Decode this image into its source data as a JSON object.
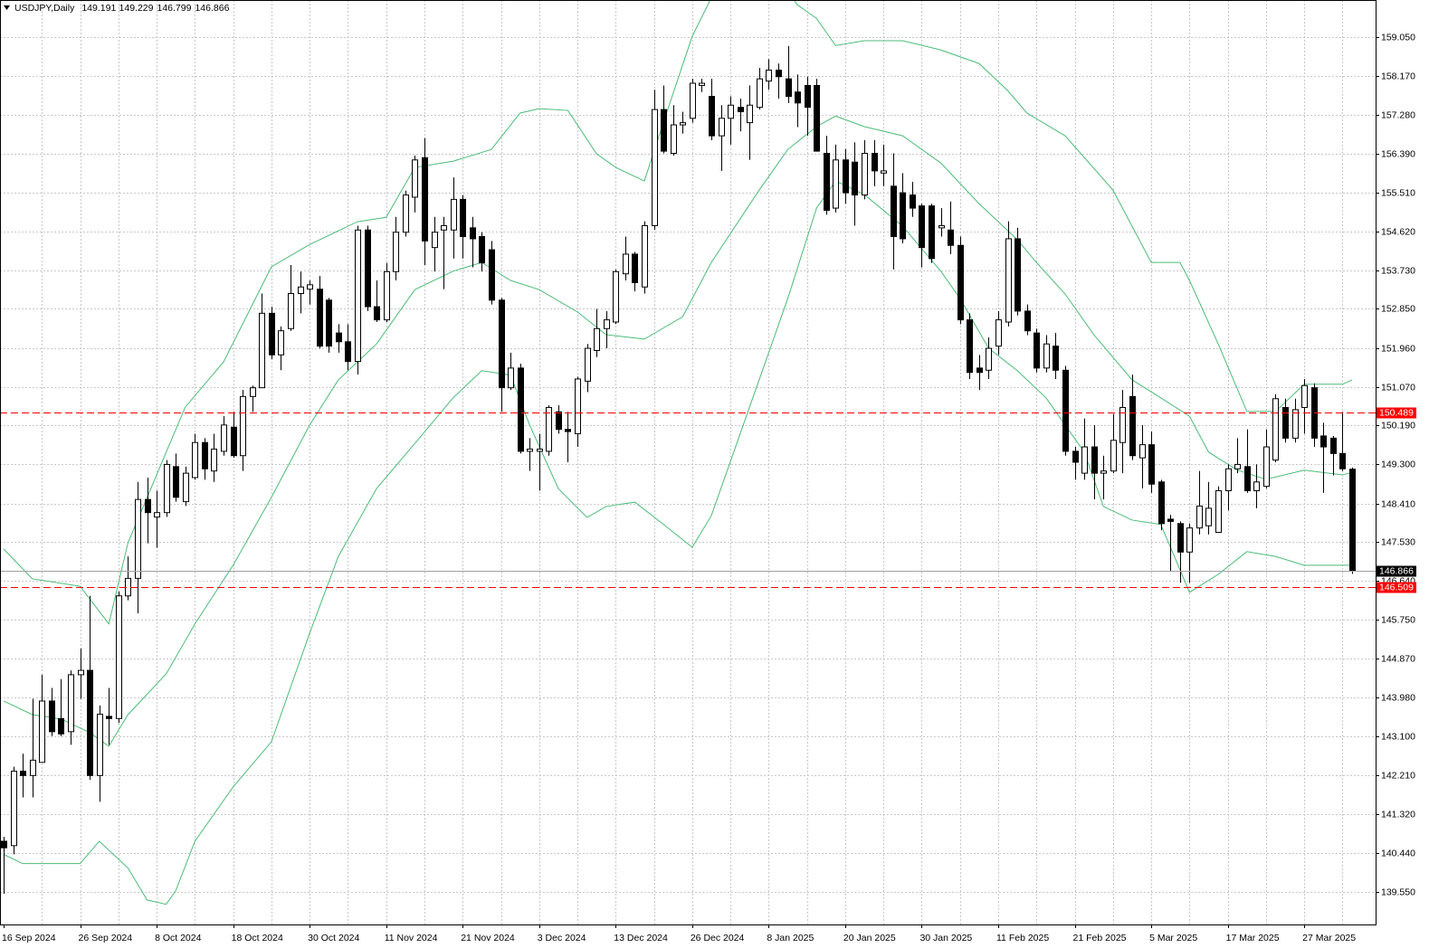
{
  "chart_data": {
    "type": "candlestick",
    "title": "USDJPY,Daily",
    "categories": [
      "16 Sep 2024",
      null,
      null,
      null,
      null,
      null,
      null,
      null,
      "26 Sep 2024",
      null,
      null,
      null,
      null,
      null,
      null,
      null,
      "8 Oct 2024",
      null,
      null,
      null,
      null,
      null,
      null,
      null,
      "18 Oct 2024",
      null,
      null,
      null,
      null,
      null,
      null,
      null,
      "30 Oct 2024",
      null,
      null,
      null,
      null,
      null,
      null,
      null,
      "11 Nov 2024",
      null,
      null,
      null,
      null,
      null,
      null,
      null,
      "21 Nov 2024",
      null,
      null,
      null,
      null,
      null,
      null,
      null,
      "3 Dec 2024",
      null,
      null,
      null,
      null,
      null,
      null,
      null,
      "13 Dec 2024",
      null,
      null,
      null,
      null,
      null,
      null,
      null,
      "26 Dec 2024",
      null,
      null,
      null,
      null,
      null,
      null,
      null,
      "8 Jan 2025",
      null,
      null,
      null,
      null,
      null,
      null,
      null,
      "20 Jan 2025",
      null,
      null,
      null,
      null,
      null,
      null,
      null,
      "30 Jan 2025",
      null,
      null,
      null,
      null,
      null,
      null,
      null,
      "11 Feb 2025",
      null,
      null,
      null,
      null,
      null,
      null,
      null,
      "21 Feb 2025",
      null,
      null,
      null,
      null,
      null,
      null,
      null,
      "5 Mar 2025",
      null,
      null,
      null,
      null,
      null,
      null,
      null,
      "17 Mar 2025",
      null,
      null,
      null,
      null,
      null,
      null,
      null,
      "27 Mar 2025",
      null,
      null,
      null,
      null,
      null
    ],
    "open": [
      140.7,
      140.6,
      142.3,
      142.2,
      142.5,
      143.9,
      143.5,
      143.2,
      144.5,
      144.6,
      142.2,
      143.55,
      143.5,
      146.3,
      146.7,
      148.5,
      148.1,
      148.2,
      149.25,
      148.45,
      149.0,
      149.8,
      149.15,
      149.6,
      150.15,
      149.5,
      150.85,
      151.05,
      152.75,
      151.8,
      152.4,
      153.2,
      153.3,
      153.3,
      153.05,
      152.3,
      152.1,
      151.65,
      154.65,
      152.9,
      152.6,
      153.7,
      154.6,
      155.4,
      156.3,
      154.25,
      154.65,
      154.65,
      155.35,
      154.7,
      154.5,
      154.2,
      153.05,
      151.05,
      151.5,
      149.6,
      149.6,
      149.6,
      150.5,
      150.1,
      150.0,
      151.2,
      151.9,
      152.4,
      152.55,
      153.65,
      154.1,
      153.35,
      154.75,
      157.4,
      156.4,
      157.05,
      157.2,
      157.95,
      157.7,
      156.8,
      157.2,
      157.45,
      157.1,
      157.45,
      158.05,
      158.3,
      158.1,
      157.8,
      157.95,
      157.95,
      156.4,
      155.15,
      156.25,
      156.2,
      155.45,
      156.4,
      155.95,
      155.65,
      155.5,
      155.45,
      155.2,
      155.2,
      154.7,
      154.65,
      154.3,
      152.6,
      151.5,
      151.45,
      152.0,
      152.55,
      154.45,
      152.8,
      152.3,
      151.5,
      152.0,
      151.45,
      149.6,
      149.1,
      149.7,
      149.1,
      149.15,
      149.8,
      150.85,
      149.45,
      149.75,
      148.9,
      148.05,
      147.95,
      147.3,
      147.85,
      147.9,
      147.75,
      148.7,
      149.2,
      149.25,
      148.7,
      148.8,
      149.4,
      150.6,
      149.9,
      150.6,
      151.05,
      149.95,
      149.9,
      149.55,
      149.191
    ],
    "high": [
      140.8,
      142.4,
      142.7,
      143.95,
      144.5,
      144.2,
      144.4,
      144.6,
      145.1,
      146.3,
      143.8,
      144.2,
      146.4,
      147.2,
      148.9,
      149.0,
      148.7,
      149.4,
      149.55,
      149.25,
      150.0,
      149.9,
      150.0,
      150.4,
      150.5,
      151.0,
      151.1,
      153.2,
      152.9,
      152.45,
      153.85,
      153.7,
      153.5,
      153.6,
      153.1,
      152.5,
      152.5,
      154.75,
      154.75,
      153.5,
      153.9,
      154.95,
      155.55,
      156.35,
      156.75,
      154.95,
      154.95,
      155.85,
      155.45,
      154.95,
      154.6,
      154.4,
      153.1,
      151.85,
      151.6,
      149.9,
      150.0,
      150.65,
      150.65,
      150.5,
      151.3,
      152.05,
      152.85,
      152.8,
      153.75,
      154.5,
      154.15,
      154.85,
      157.85,
      157.95,
      157.5,
      157.35,
      158.1,
      158.1,
      158.1,
      157.5,
      157.7,
      157.65,
      157.95,
      158.35,
      158.55,
      158.45,
      158.85,
      158.2,
      158.15,
      158.1,
      156.8,
      156.6,
      156.5,
      156.65,
      156.7,
      156.7,
      156.6,
      156.4,
      155.95,
      155.75,
      155.25,
      155.25,
      155.15,
      155.3,
      154.5,
      152.75,
      151.8,
      152.2,
      152.8,
      154.85,
      154.7,
      152.95,
      152.4,
      152.25,
      152.3,
      151.55,
      149.7,
      150.35,
      150.2,
      149.5,
      150.45,
      151.0,
      151.35,
      150.2,
      150.05,
      148.95,
      148.15,
      148.0,
      147.95,
      149.15,
      148.9,
      148.8,
      149.3,
      149.9,
      150.1,
      149.3,
      150.1,
      150.9,
      150.8,
      150.8,
      151.25,
      151.15,
      150.25,
      149.95,
      150.5,
      149.229
    ],
    "low": [
      139.5,
      140.4,
      141.7,
      141.7,
      142.5,
      143.1,
      143.1,
      142.9,
      143.95,
      142.1,
      141.6,
      142.9,
      143.4,
      146.2,
      145.9,
      147.5,
      147.4,
      148.1,
      148.45,
      148.35,
      148.95,
      148.95,
      148.9,
      149.5,
      149.45,
      149.15,
      150.5,
      151.05,
      151.7,
      151.45,
      152.35,
      152.75,
      152.95,
      151.95,
      151.85,
      151.85,
      151.45,
      151.35,
      152.8,
      152.55,
      152.55,
      153.5,
      154.5,
      155.05,
      153.85,
      153.7,
      153.3,
      154.0,
      154.0,
      153.8,
      153.7,
      152.95,
      150.5,
      151.0,
      149.55,
      149.15,
      148.7,
      149.5,
      150.0,
      149.35,
      149.7,
      150.95,
      151.75,
      151.95,
      152.5,
      153.5,
      153.25,
      153.2,
      154.65,
      156.4,
      156.35,
      156.85,
      157.1,
      157.8,
      156.7,
      156.0,
      156.6,
      156.9,
      156.25,
      157.4,
      157.85,
      157.65,
      157.55,
      157.0,
      156.8,
      156.45,
      155.0,
      155.05,
      155.25,
      154.75,
      155.35,
      155.65,
      155.65,
      153.75,
      154.35,
      154.95,
      153.8,
      153.9,
      154.5,
      154.1,
      152.5,
      151.25,
      151.0,
      151.25,
      151.8,
      152.45,
      152.7,
      152.25,
      151.4,
      151.4,
      151.25,
      149.5,
      148.95,
      148.95,
      148.5,
      148.5,
      149.1,
      149.1,
      149.4,
      148.75,
      148.65,
      147.8,
      146.85,
      146.6,
      146.6,
      147.7,
      147.7,
      147.75,
      148.25,
      149.1,
      148.65,
      148.3,
      148.75,
      149.35,
      149.8,
      149.8,
      150.0,
      149.7,
      148.65,
      149.05,
      149.15,
      146.799
    ],
    "close": [
      140.55,
      142.3,
      142.2,
      142.55,
      143.9,
      143.2,
      143.15,
      144.5,
      144.6,
      142.2,
      143.6,
      143.5,
      146.3,
      146.7,
      148.5,
      148.2,
      148.2,
      149.3,
      148.55,
      149.1,
      149.8,
      149.2,
      149.65,
      150.2,
      149.5,
      150.85,
      151.05,
      152.75,
      151.8,
      152.35,
      153.2,
      153.35,
      153.4,
      152.0,
      152.0,
      152.1,
      151.65,
      154.65,
      152.9,
      152.6,
      153.7,
      154.6,
      155.45,
      156.25,
      154.4,
      154.6,
      154.75,
      155.35,
      154.5,
      154.45,
      153.9,
      153.05,
      151.05,
      151.5,
      149.6,
      149.65,
      149.65,
      150.6,
      150.1,
      150.05,
      151.25,
      151.95,
      152.4,
      152.6,
      153.7,
      154.1,
      153.45,
      154.75,
      157.4,
      156.45,
      157.05,
      157.1,
      158.0,
      158.0,
      156.8,
      157.2,
      157.5,
      157.35,
      157.5,
      158.1,
      158.3,
      158.15,
      157.7,
      157.55,
      157.45,
      156.45,
      155.1,
      156.25,
      155.5,
      155.45,
      156.4,
      156.0,
      156.0,
      154.5,
      154.45,
      155.15,
      154.25,
      154.0,
      154.75,
      154.3,
      152.6,
      151.4,
      151.4,
      151.95,
      152.6,
      154.45,
      152.8,
      152.35,
      151.5,
      152.05,
      151.45,
      149.6,
      149.35,
      149.7,
      149.1,
      149.15,
      149.85,
      150.6,
      149.5,
      149.75,
      148.85,
      147.95,
      148.0,
      147.3,
      147.85,
      148.35,
      148.3,
      148.7,
      149.2,
      149.3,
      148.7,
      148.9,
      149.7,
      150.8,
      149.9,
      150.55,
      151.1,
      149.9,
      149.7,
      149.55,
      149.2,
      146.866
    ],
    "up_color": "#ffffff",
    "down_color": "#000000",
    "bands": [
      {
        "color": "#4cbb78",
        "x": [
          0,
          3,
          8,
          11,
          13,
          17,
          19,
          23,
          28,
          32,
          37,
          40,
          43,
          47,
          51,
          54,
          56,
          59,
          62,
          64,
          67,
          69,
          72,
          74,
          78,
          81,
          83,
          85,
          87,
          90,
          94,
          98,
          102,
          105,
          107,
          111,
          116,
          120,
          123,
          124,
          127,
          130,
          133,
          136,
          140,
          141
        ],
        "values": [
          147.37,
          146.69,
          146.52,
          145.66,
          147.51,
          149.58,
          150.61,
          151.64,
          153.81,
          154.32,
          154.84,
          154.94,
          156.08,
          156.22,
          156.49,
          157.32,
          157.42,
          157.38,
          156.39,
          156.08,
          155.77,
          157.11,
          159.07,
          159.95,
          160.6,
          160.4,
          159.79,
          159.48,
          158.86,
          158.97,
          158.97,
          158.76,
          158.45,
          157.83,
          157.32,
          156.8,
          155.56,
          153.91,
          153.91,
          153.5,
          152.05,
          150.51,
          150.51,
          151.13,
          151.13,
          151.23
        ]
      },
      {
        "color": "#4cbb78",
        "x": [
          0,
          3,
          6,
          9,
          11,
          13,
          17,
          20,
          24,
          28,
          32,
          35,
          39,
          43,
          47,
          50,
          53,
          56,
          60,
          63,
          67,
          71,
          74,
          79,
          82,
          85,
          87,
          90,
          94,
          98,
          102,
          106,
          108,
          111,
          114,
          118,
          121,
          124,
          126,
          129,
          132,
          136,
          140,
          141
        ],
        "values": [
          143.9,
          143.59,
          143.49,
          143.18,
          142.87,
          143.59,
          144.52,
          145.66,
          147.0,
          148.55,
          150.2,
          151.23,
          152.05,
          153.29,
          153.71,
          153.91,
          153.5,
          153.29,
          152.78,
          152.26,
          152.16,
          152.67,
          153.91,
          155.56,
          156.49,
          157.01,
          157.25,
          157.01,
          156.8,
          156.18,
          155.25,
          154.43,
          153.91,
          153.19,
          152.26,
          151.23,
          150.82,
          150.4,
          149.58,
          149.17,
          148.96,
          149.17,
          149.06,
          149.12
        ]
      },
      {
        "color": "#4cbb78",
        "x": [
          0,
          2,
          6,
          8,
          10,
          13,
          15,
          17,
          18,
          20,
          24,
          28,
          32,
          35,
          39,
          43,
          47,
          50,
          53,
          55,
          58,
          61,
          63,
          66,
          69,
          72,
          74,
          78,
          82,
          85,
          87,
          90,
          94,
          98,
          100,
          103,
          106,
          109,
          113,
          115,
          118,
          121,
          123,
          124,
          127,
          130,
          133,
          136,
          141
        ],
        "values": [
          140.4,
          140.19,
          140.19,
          140.19,
          140.7,
          140.09,
          139.36,
          139.26,
          139.57,
          140.7,
          141.94,
          142.97,
          145.45,
          147.2,
          148.75,
          149.78,
          150.82,
          151.44,
          151.34,
          150.2,
          148.75,
          148.09,
          148.34,
          148.44,
          147.93,
          147.41,
          148.13,
          150.61,
          153.09,
          155.15,
          155.77,
          155.46,
          154.74,
          153.71,
          153.09,
          151.95,
          151.44,
          150.82,
          149.58,
          148.34,
          148.03,
          147.93,
          146.9,
          146.38,
          146.79,
          147.31,
          147.2,
          147.0,
          147.0
        ]
      }
    ],
    "levels": [
      {
        "value": 150.489,
        "color": "#ff0000"
      },
      {
        "value": 146.509,
        "color": "#ff0000"
      }
    ],
    "ylim": [
      138.8,
      159.9
    ],
    "yticks": [
      {
        "value": 159.05,
        "label": "159.050"
      },
      {
        "value": 158.17,
        "label": "158.170"
      },
      {
        "value": 157.28,
        "label": "157.280"
      },
      {
        "value": 156.39,
        "label": "156.390"
      },
      {
        "value": 155.51,
        "label": "155.510"
      },
      {
        "value": 154.62,
        "label": "154.620"
      },
      {
        "value": 153.73,
        "label": "153.730"
      },
      {
        "value": 152.85,
        "label": "152.850"
      },
      {
        "value": 151.96,
        "label": "151.960"
      },
      {
        "value": 151.07,
        "label": "151.070"
      },
      {
        "value": 150.19,
        "label": "150.190"
      },
      {
        "value": 149.3,
        "label": "149.300"
      },
      {
        "value": 148.41,
        "label": "148.410"
      },
      {
        "value": 147.53,
        "label": "147.530"
      },
      {
        "value": 146.64,
        "label": "146.640"
      },
      {
        "value": 145.75,
        "label": "145.750"
      },
      {
        "value": 144.87,
        "label": "144.870"
      },
      {
        "value": 143.98,
        "label": "143.980"
      },
      {
        "value": 143.1,
        "label": "143.100"
      },
      {
        "value": 142.21,
        "label": "142.210"
      },
      {
        "value": 141.32,
        "label": "141.320"
      },
      {
        "value": 140.44,
        "label": "140.440"
      },
      {
        "value": 139.55,
        "label": "139.550"
      }
    ],
    "grid": true
  }
}
